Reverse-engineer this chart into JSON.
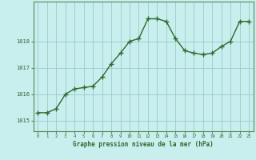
{
  "x": [
    0,
    1,
    2,
    3,
    4,
    5,
    6,
    7,
    8,
    9,
    10,
    11,
    12,
    13,
    14,
    15,
    16,
    17,
    18,
    19,
    20,
    21,
    22,
    23
  ],
  "y": [
    1015.3,
    1015.3,
    1015.45,
    1016.0,
    1016.2,
    1016.25,
    1016.3,
    1016.65,
    1017.15,
    1017.55,
    1018.0,
    1018.1,
    1018.85,
    1018.85,
    1018.75,
    1018.1,
    1017.65,
    1017.55,
    1017.5,
    1017.55,
    1017.8,
    1018.0,
    1018.75,
    1018.75
  ],
  "line_color": "#2d6a2d",
  "marker_color": "#2d6a2d",
  "bg_color": "#c8eeee",
  "grid_color": "#99cccc",
  "xlabel": "Graphe pression niveau de la mer (hPa)",
  "ylabel_ticks": [
    1015,
    1016,
    1017,
    1018
  ],
  "xlim": [
    -0.5,
    23.5
  ],
  "ylim": [
    1014.6,
    1019.5
  ],
  "tick_color": "#2d6a2d",
  "spine_color": "#5a8a5a"
}
